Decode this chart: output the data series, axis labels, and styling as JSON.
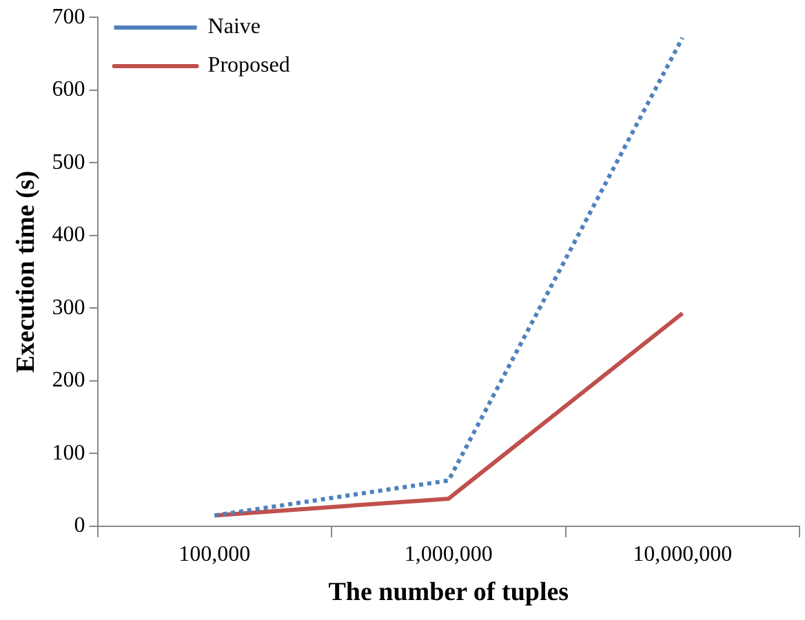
{
  "chart_data": {
    "type": "line",
    "xlabel": "The number of tuples",
    "ylabel": "Execution time (s)",
    "categories": [
      "100,000",
      "1,000,000",
      "10,000,000"
    ],
    "series": [
      {
        "name": "Naive",
        "color": "#4f81bd",
        "values": [
          15,
          63,
          672
        ],
        "line_style": "dotted"
      },
      {
        "name": "Proposed",
        "color": "#c0504d",
        "values": [
          15,
          38,
          293
        ],
        "line_style": "solid"
      }
    ],
    "ylim": [
      0,
      700
    ],
    "yticks": [
      0,
      100,
      200,
      300,
      400,
      500,
      600,
      700
    ],
    "grid": false,
    "legend": "top left",
    "marker": "none"
  }
}
